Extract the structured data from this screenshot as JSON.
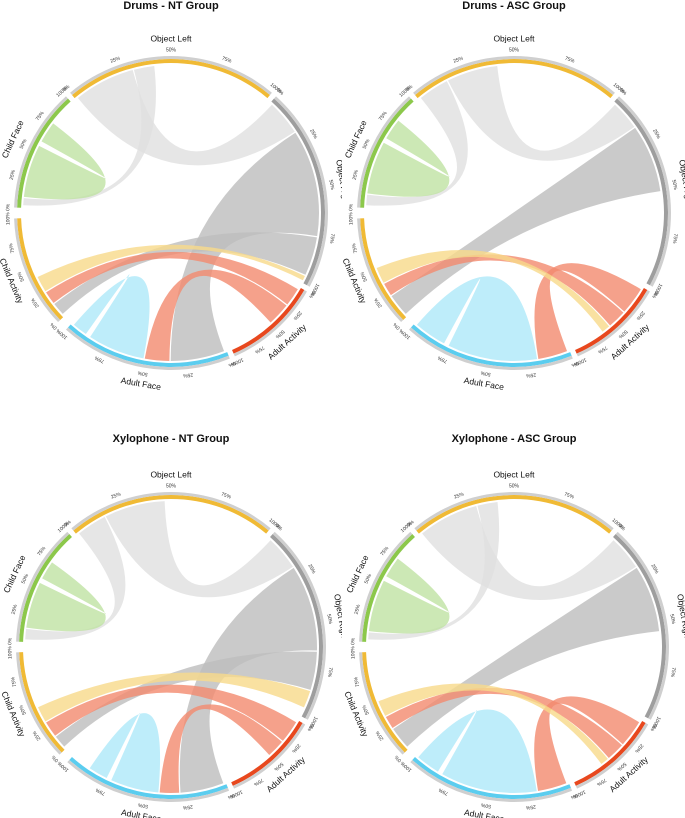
{
  "chart_data": [
    {
      "type": "chord",
      "title": "Drums - NT Group",
      "sectors": [
        {
          "name": "Object Left",
          "color": "#f0ba35"
        },
        {
          "name": "Object Right",
          "color": "#9e9e9e"
        },
        {
          "name": "Adult Activity",
          "color": "#e8481e"
        },
        {
          "name": "Adult Face",
          "color": "#5bcdef"
        },
        {
          "name": "Child Activity",
          "color": "#f0ba35"
        },
        {
          "name": "Child Face",
          "color": "#8cc84b"
        }
      ],
      "tick_labels": [
        "0%",
        "25%",
        "50%",
        "75%",
        "100%"
      ],
      "flows": [
        {
          "from": "Object Left",
          "to": "Object Right",
          "value": 0.3
        },
        {
          "from": "Object Left",
          "to": "Child Face",
          "value": 0.1
        },
        {
          "from": "Object Right",
          "to": "Adult Face",
          "value": 0.55
        },
        {
          "from": "Object Right",
          "to": "Child Activity",
          "value": 0.2
        },
        {
          "from": "Adult Activity",
          "to": "Child Activity",
          "value": 0.2
        },
        {
          "from": "Adult Activity",
          "to": "Adult Face",
          "value": 0.25
        },
        {
          "from": "Adult Face",
          "to": "Adult Face",
          "value": 0.35
        },
        {
          "from": "Child Face",
          "to": "Child Face",
          "value": 0.45
        },
        {
          "from": "Child Activity",
          "to": "Object Right",
          "value": 0.15
        }
      ]
    },
    {
      "type": "chord",
      "title": "Drums - ASC Group",
      "sectors": [
        {
          "name": "Object Left",
          "color": "#f0ba35"
        },
        {
          "name": "Object Right",
          "color": "#9e9e9e"
        },
        {
          "name": "Adult Activity",
          "color": "#e8481e"
        },
        {
          "name": "Adult Face",
          "color": "#5bcdef"
        },
        {
          "name": "Child Activity",
          "color": "#f0ba35"
        },
        {
          "name": "Child Face",
          "color": "#8cc84b"
        }
      ],
      "tick_labels": [
        "0%",
        "25%",
        "50%",
        "75%",
        "100%"
      ],
      "flows": [
        {
          "from": "Object Left",
          "to": "Child Face",
          "value": 0.15
        },
        {
          "from": "Object Left",
          "to": "Object Right",
          "value": 0.25
        },
        {
          "from": "Object Right",
          "to": "Child Activity",
          "value": 0.35
        },
        {
          "from": "Adult Activity",
          "to": "Adult Face",
          "value": 0.3
        },
        {
          "from": "Adult Activity",
          "to": "Child Activity",
          "value": 0.2
        },
        {
          "from": "Adult Face",
          "to": "Adult Face",
          "value": 0.55
        },
        {
          "from": "Child Face",
          "to": "Child Face",
          "value": 0.45
        },
        {
          "from": "Child Activity",
          "to": "Adult Activity",
          "value": 0.15
        }
      ]
    },
    {
      "type": "chord",
      "title": "Xylophone - NT Group",
      "sectors": [
        {
          "name": "Object Left",
          "color": "#f0ba35"
        },
        {
          "name": "Object Right",
          "color": "#9e9e9e"
        },
        {
          "name": "Adult Activity",
          "color": "#e8481e"
        },
        {
          "name": "Adult Face",
          "color": "#5bcdef"
        },
        {
          "name": "Child Activity",
          "color": "#f0ba35"
        },
        {
          "name": "Child Face",
          "color": "#8cc84b"
        }
      ],
      "tick_labels": [
        "0%",
        "25%",
        "50%",
        "75%",
        "100%"
      ],
      "flows": [
        {
          "from": "Object Left",
          "to": "Child Face",
          "value": 0.15
        },
        {
          "from": "Object Left",
          "to": "Object Right",
          "value": 0.3
        },
        {
          "from": "Object Right",
          "to": "Adult Face",
          "value": 0.45
        },
        {
          "from": "Object Right",
          "to": "Child Activity",
          "value": 0.2
        },
        {
          "from": "Adult Activity",
          "to": "Child Activity",
          "value": 0.25
        },
        {
          "from": "Adult Activity",
          "to": "Adult Face",
          "value": 0.2
        },
        {
          "from": "Adult Face",
          "to": "Adult Face",
          "value": 0.3
        },
        {
          "from": "Child Face",
          "to": "Child Face",
          "value": 0.4
        },
        {
          "from": "Child Activity",
          "to": "Object Right",
          "value": 0.15
        }
      ]
    },
    {
      "type": "chord",
      "title": "Xylophone - ASC Group",
      "sectors": [
        {
          "name": "Object Left",
          "color": "#f0ba35"
        },
        {
          "name": "Object Right",
          "color": "#9e9e9e"
        },
        {
          "name": "Adult Activity",
          "color": "#e8481e"
        },
        {
          "name": "Adult Face",
          "color": "#5bcdef"
        },
        {
          "name": "Child Activity",
          "color": "#f0ba35"
        },
        {
          "name": "Child Face",
          "color": "#8cc84b"
        }
      ],
      "tick_labels": [
        "0%",
        "25%",
        "50%",
        "75%",
        "100%"
      ],
      "flows": [
        {
          "from": "Object Left",
          "to": "Object Right",
          "value": 0.3
        },
        {
          "from": "Object Left",
          "to": "Child Face",
          "value": 0.1
        },
        {
          "from": "Object Right",
          "to": "Child Activity",
          "value": 0.35
        },
        {
          "from": "Adult Activity",
          "to": "Adult Face",
          "value": 0.3
        },
        {
          "from": "Adult Activity",
          "to": "Child Activity",
          "value": 0.2
        },
        {
          "from": "Adult Face",
          "to": "Adult Face",
          "value": 0.6
        },
        {
          "from": "Child Face",
          "to": "Child Face",
          "value": 0.45
        },
        {
          "from": "Child Activity",
          "to": "Adult Activity",
          "value": 0.15
        }
      ]
    }
  ]
}
